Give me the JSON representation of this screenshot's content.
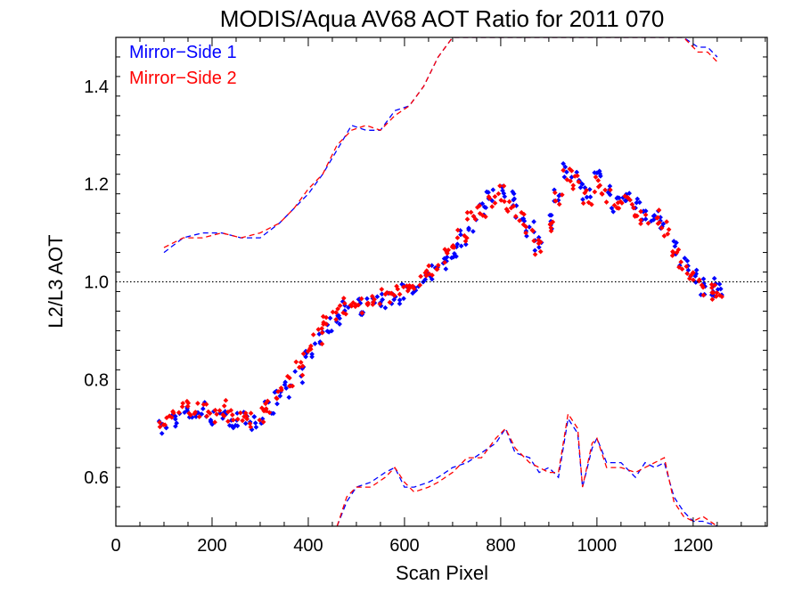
{
  "chart_data": {
    "type": "scatter",
    "title": "MODIS/Aqua AV68 AOT Ratio for 2011 070",
    "xlabel": "Scan Pixel",
    "ylabel": "L2/L3 AOT",
    "xlim": [
      0,
      1354
    ],
    "ylim": [
      0.5,
      1.5
    ],
    "x_ticks": [
      0,
      200,
      400,
      600,
      800,
      1000,
      1200
    ],
    "y_ticks": [
      0.6,
      0.8,
      1.0,
      1.2,
      1.4
    ],
    "y_tick_labels": [
      "0.6",
      "0.8",
      "1.0",
      "1.2",
      "1.4"
    ],
    "reference_line": {
      "y": 1.0,
      "style": "dotted"
    },
    "legend_position": "top-left",
    "series": [
      {
        "name": "Mirror−Side 1",
        "color": "#0000ff",
        "points": [
          [
            100,
            0.7
          ],
          [
            120,
            0.72
          ],
          [
            140,
            0.73
          ],
          [
            160,
            0.73
          ],
          [
            180,
            0.74
          ],
          [
            200,
            0.72
          ],
          [
            220,
            0.73
          ],
          [
            240,
            0.71
          ],
          [
            260,
            0.72
          ],
          [
            280,
            0.71
          ],
          [
            300,
            0.72
          ],
          [
            320,
            0.74
          ],
          [
            340,
            0.76
          ],
          [
            360,
            0.78
          ],
          [
            380,
            0.81
          ],
          [
            400,
            0.85
          ],
          [
            420,
            0.88
          ],
          [
            440,
            0.91
          ],
          [
            460,
            0.93
          ],
          [
            480,
            0.95
          ],
          [
            500,
            0.95
          ],
          [
            520,
            0.95
          ],
          [
            540,
            0.96
          ],
          [
            560,
            0.96
          ],
          [
            580,
            0.97
          ],
          [
            600,
            0.98
          ],
          [
            620,
            0.98
          ],
          [
            640,
            1.0
          ],
          [
            660,
            1.02
          ],
          [
            680,
            1.04
          ],
          [
            700,
            1.06
          ],
          [
            720,
            1.09
          ],
          [
            740,
            1.12
          ],
          [
            760,
            1.15
          ],
          [
            780,
            1.18
          ],
          [
            800,
            1.19
          ],
          [
            820,
            1.17
          ],
          [
            840,
            1.14
          ],
          [
            860,
            1.11
          ],
          [
            880,
            1.08
          ],
          [
            900,
            1.12
          ],
          [
            920,
            1.18
          ],
          [
            940,
            1.23
          ],
          [
            960,
            1.21
          ],
          [
            980,
            1.18
          ],
          [
            1000,
            1.21
          ],
          [
            1020,
            1.19
          ],
          [
            1040,
            1.16
          ],
          [
            1060,
            1.17
          ],
          [
            1080,
            1.16
          ],
          [
            1100,
            1.14
          ],
          [
            1120,
            1.14
          ],
          [
            1140,
            1.12
          ],
          [
            1160,
            1.07
          ],
          [
            1180,
            1.04
          ],
          [
            1200,
            1.01
          ],
          [
            1220,
            0.99
          ],
          [
            1240,
            0.99
          ],
          [
            1250,
            0.98
          ]
        ],
        "upper_dashed": [
          [
            100,
            1.06
          ],
          [
            140,
            1.09
          ],
          [
            180,
            1.1
          ],
          [
            220,
            1.1
          ],
          [
            260,
            1.09
          ],
          [
            300,
            1.09
          ],
          [
            340,
            1.12
          ],
          [
            370,
            1.15
          ],
          [
            400,
            1.18
          ],
          [
            430,
            1.22
          ],
          [
            460,
            1.27
          ],
          [
            490,
            1.32
          ],
          [
            520,
            1.31
          ],
          [
            550,
            1.31
          ],
          [
            580,
            1.35
          ],
          [
            610,
            1.36
          ],
          [
            640,
            1.4
          ],
          [
            670,
            1.46
          ],
          [
            700,
            1.5
          ],
          [
            1180,
            1.5
          ],
          [
            1210,
            1.48
          ],
          [
            1230,
            1.48
          ],
          [
            1250,
            1.46
          ]
        ],
        "lower_dashed": [
          [
            460,
            0.5
          ],
          [
            480,
            0.55
          ],
          [
            500,
            0.58
          ],
          [
            530,
            0.59
          ],
          [
            560,
            0.61
          ],
          [
            580,
            0.62
          ],
          [
            600,
            0.58
          ],
          [
            620,
            0.58
          ],
          [
            650,
            0.59
          ],
          [
            670,
            0.6
          ],
          [
            700,
            0.62
          ],
          [
            730,
            0.63
          ],
          [
            760,
            0.65
          ],
          [
            790,
            0.67
          ],
          [
            810,
            0.7
          ],
          [
            830,
            0.65
          ],
          [
            860,
            0.64
          ],
          [
            880,
            0.61
          ],
          [
            900,
            0.62
          ],
          [
            920,
            0.6
          ],
          [
            940,
            0.72
          ],
          [
            960,
            0.69
          ],
          [
            970,
            0.58
          ],
          [
            990,
            0.66
          ],
          [
            1000,
            0.68
          ],
          [
            1020,
            0.63
          ],
          [
            1050,
            0.63
          ],
          [
            1080,
            0.6
          ],
          [
            1100,
            0.63
          ],
          [
            1120,
            0.62
          ],
          [
            1140,
            0.63
          ],
          [
            1160,
            0.56
          ],
          [
            1180,
            0.53
          ],
          [
            1200,
            0.51
          ],
          [
            1220,
            0.51
          ],
          [
            1250,
            0.5
          ]
        ]
      },
      {
        "name": "Mirror−Side 2",
        "color": "#ff0000",
        "points": [
          [
            100,
            0.71
          ],
          [
            120,
            0.73
          ],
          [
            140,
            0.74
          ],
          [
            160,
            0.74
          ],
          [
            180,
            0.74
          ],
          [
            200,
            0.73
          ],
          [
            220,
            0.74
          ],
          [
            240,
            0.72
          ],
          [
            260,
            0.73
          ],
          [
            280,
            0.72
          ],
          [
            300,
            0.73
          ],
          [
            320,
            0.75
          ],
          [
            340,
            0.77
          ],
          [
            360,
            0.79
          ],
          [
            380,
            0.82
          ],
          [
            400,
            0.86
          ],
          [
            420,
            0.89
          ],
          [
            440,
            0.92
          ],
          [
            460,
            0.94
          ],
          [
            480,
            0.95
          ],
          [
            500,
            0.96
          ],
          [
            520,
            0.95
          ],
          [
            540,
            0.97
          ],
          [
            560,
            0.97
          ],
          [
            580,
            0.98
          ],
          [
            600,
            0.98
          ],
          [
            620,
            0.99
          ],
          [
            640,
            1.01
          ],
          [
            660,
            1.03
          ],
          [
            680,
            1.05
          ],
          [
            700,
            1.07
          ],
          [
            720,
            1.1
          ],
          [
            740,
            1.13
          ],
          [
            760,
            1.15
          ],
          [
            780,
            1.17
          ],
          [
            800,
            1.18
          ],
          [
            820,
            1.16
          ],
          [
            840,
            1.13
          ],
          [
            860,
            1.1
          ],
          [
            880,
            1.07
          ],
          [
            900,
            1.11
          ],
          [
            920,
            1.17
          ],
          [
            940,
            1.22
          ],
          [
            960,
            1.2
          ],
          [
            980,
            1.17
          ],
          [
            1000,
            1.2
          ],
          [
            1020,
            1.18
          ],
          [
            1040,
            1.15
          ],
          [
            1060,
            1.16
          ],
          [
            1080,
            1.15
          ],
          [
            1100,
            1.13
          ],
          [
            1120,
            1.13
          ],
          [
            1140,
            1.11
          ],
          [
            1160,
            1.06
          ],
          [
            1180,
            1.03
          ],
          [
            1200,
            1.01
          ],
          [
            1220,
            0.99
          ],
          [
            1240,
            0.98
          ],
          [
            1250,
            0.98
          ]
        ],
        "upper_dashed": [
          [
            100,
            1.07
          ],
          [
            140,
            1.09
          ],
          [
            180,
            1.09
          ],
          [
            220,
            1.1
          ],
          [
            260,
            1.09
          ],
          [
            300,
            1.1
          ],
          [
            340,
            1.12
          ],
          [
            370,
            1.15
          ],
          [
            400,
            1.19
          ],
          [
            430,
            1.22
          ],
          [
            460,
            1.28
          ],
          [
            490,
            1.31
          ],
          [
            520,
            1.32
          ],
          [
            550,
            1.31
          ],
          [
            580,
            1.34
          ],
          [
            610,
            1.36
          ],
          [
            640,
            1.4
          ],
          [
            670,
            1.46
          ],
          [
            700,
            1.5
          ],
          [
            1180,
            1.5
          ],
          [
            1210,
            1.47
          ],
          [
            1230,
            1.47
          ],
          [
            1250,
            1.45
          ]
        ],
        "lower_dashed": [
          [
            460,
            0.5
          ],
          [
            480,
            0.56
          ],
          [
            500,
            0.58
          ],
          [
            530,
            0.58
          ],
          [
            560,
            0.6
          ],
          [
            580,
            0.62
          ],
          [
            600,
            0.59
          ],
          [
            620,
            0.57
          ],
          [
            650,
            0.58
          ],
          [
            670,
            0.59
          ],
          [
            700,
            0.61
          ],
          [
            730,
            0.64
          ],
          [
            760,
            0.64
          ],
          [
            790,
            0.68
          ],
          [
            810,
            0.7
          ],
          [
            830,
            0.66
          ],
          [
            860,
            0.63
          ],
          [
            880,
            0.62
          ],
          [
            900,
            0.61
          ],
          [
            920,
            0.61
          ],
          [
            940,
            0.73
          ],
          [
            960,
            0.7
          ],
          [
            970,
            0.58
          ],
          [
            990,
            0.67
          ],
          [
            1000,
            0.68
          ],
          [
            1020,
            0.62
          ],
          [
            1050,
            0.62
          ],
          [
            1080,
            0.61
          ],
          [
            1100,
            0.62
          ],
          [
            1120,
            0.63
          ],
          [
            1140,
            0.64
          ],
          [
            1160,
            0.55
          ],
          [
            1180,
            0.52
          ],
          [
            1200,
            0.51
          ],
          [
            1220,
            0.52
          ],
          [
            1250,
            0.5
          ]
        ]
      }
    ]
  }
}
